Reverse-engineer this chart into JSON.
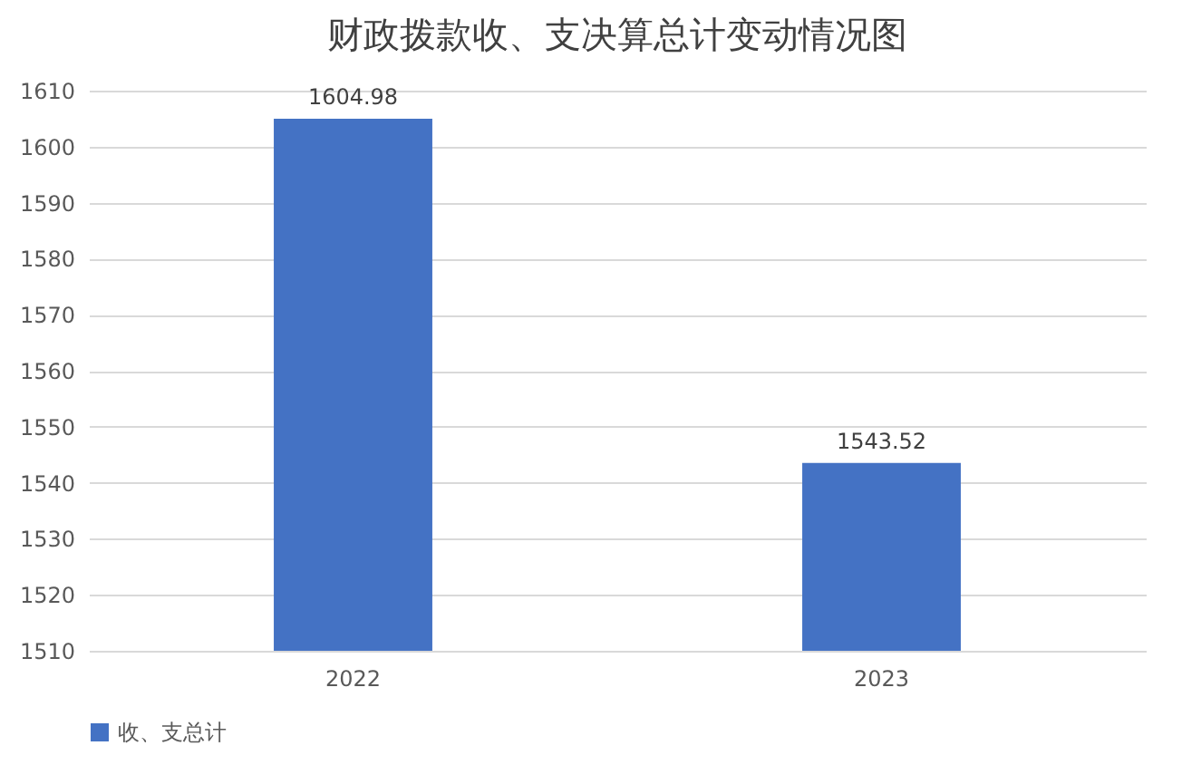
{
  "chart_data": {
    "type": "bar",
    "title": "财政拨款收、支决算总计变动情况图",
    "categories": [
      "2022",
      "2023"
    ],
    "series": [
      {
        "name": "收、支总计",
        "color": "#4472c4",
        "values": [
          1604.98,
          1543.52
        ]
      }
    ],
    "ylim": [
      1510,
      1610
    ],
    "yticks": [
      1510,
      1520,
      1530,
      1540,
      1550,
      1560,
      1570,
      1580,
      1590,
      1600,
      1610
    ],
    "grid": "y",
    "legend": "bottom",
    "data_labels": true
  }
}
